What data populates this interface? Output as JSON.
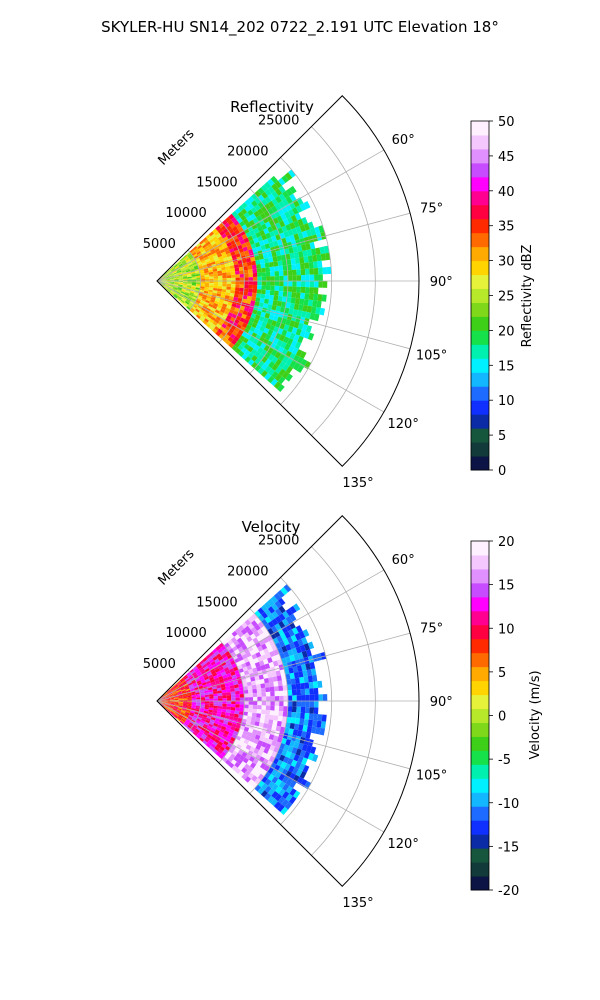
{
  "figure_title": "SKYLER-HU  SN14_202  0722_2.191 UTC Elevation 18°",
  "colors": {
    "dbz_colormap": [
      "#0b1445",
      "#123a3a",
      "#16563c",
      "#0a2aa6",
      "#1030ff",
      "#1d6cff",
      "#12b7ff",
      "#00f0ff",
      "#00f0b0",
      "#16e04a",
      "#3ecf18",
      "#7fd91a",
      "#b8e82a",
      "#e6f23a",
      "#ffd400",
      "#ffaa00",
      "#ff6a00",
      "#ff2a00",
      "#ff0040",
      "#ff0090",
      "#ff00ff",
      "#c84cff",
      "#e090ff",
      "#f4c8ff",
      "#fff0ff"
    ],
    "vel_colormap": [
      "#0b1445",
      "#123a3a",
      "#16563c",
      "#0a2aa6",
      "#1030ff",
      "#1d6cff",
      "#12b7ff",
      "#00f0ff",
      "#00f0b0",
      "#16e04a",
      "#3ecf18",
      "#7fd91a",
      "#b8e82a",
      "#e6f23a",
      "#ffd400",
      "#ffaa00",
      "#ff6a00",
      "#ff2a00",
      "#ff0040",
      "#ff0090",
      "#ff00ff",
      "#c84cff",
      "#e090ff",
      "#f4c8ff",
      "#fff0ff"
    ],
    "grid": "#b0b0b0",
    "axis": "#000000"
  },
  "chart_data": [
    {
      "type": "heatmap",
      "projection": "polar-sector",
      "title": "Reflectivity",
      "radial_label": "Meters",
      "radial_ticks": [
        5000,
        10000,
        15000,
        20000,
        25000
      ],
      "radial_range": [
        0,
        30000
      ],
      "azimuth_ticks": [
        "60°",
        "75°",
        "90°",
        "105°",
        "120°",
        "135°"
      ],
      "azimuth_tick_values": [
        60,
        75,
        90,
        105,
        120,
        135
      ],
      "azimuth_range": [
        45,
        135
      ],
      "grid": true,
      "colorbar": {
        "label": "Reflectivity dBZ",
        "range": [
          0,
          50
        ],
        "ticks": [
          0,
          5,
          10,
          15,
          20,
          25,
          30,
          35,
          40,
          45,
          50
        ]
      },
      "field_extent_m": [
        0,
        20000
      ],
      "field_dbz_summary": [
        {
          "range_m": [
            0,
            5000
          ],
          "dbz": 25
        },
        {
          "range_m": [
            5000,
            9000
          ],
          "dbz": 30
        },
        {
          "range_m": [
            9000,
            11500
          ],
          "dbz": 35
        },
        {
          "range_m": [
            11500,
            20000
          ],
          "dbz": 18
        }
      ]
    },
    {
      "type": "heatmap",
      "projection": "polar-sector",
      "title": "Velocity",
      "radial_label": "Meters",
      "radial_ticks": [
        5000,
        10000,
        15000,
        20000,
        25000
      ],
      "radial_range": [
        0,
        30000
      ],
      "azimuth_ticks": [
        "60°",
        "75°",
        "90°",
        "105°",
        "120°",
        "135°"
      ],
      "azimuth_tick_values": [
        60,
        75,
        90,
        105,
        120,
        135
      ],
      "azimuth_range": [
        45,
        135
      ],
      "grid": true,
      "colorbar": {
        "label": "Velocity (m/s)",
        "range": [
          -20,
          20
        ],
        "ticks": [
          -20,
          -15,
          -10,
          -5,
          0,
          5,
          10,
          15,
          20
        ]
      },
      "field_extent_m": [
        0,
        20000
      ],
      "field_velocity_summary": [
        {
          "range_m": [
            0,
            4000
          ],
          "velocity": 8
        },
        {
          "range_m": [
            4000,
            10000
          ],
          "velocity": 12
        },
        {
          "range_m": [
            10000,
            15000
          ],
          "velocity": 17
        },
        {
          "range_m": [
            15000,
            20000
          ],
          "velocity": -11
        }
      ]
    }
  ]
}
